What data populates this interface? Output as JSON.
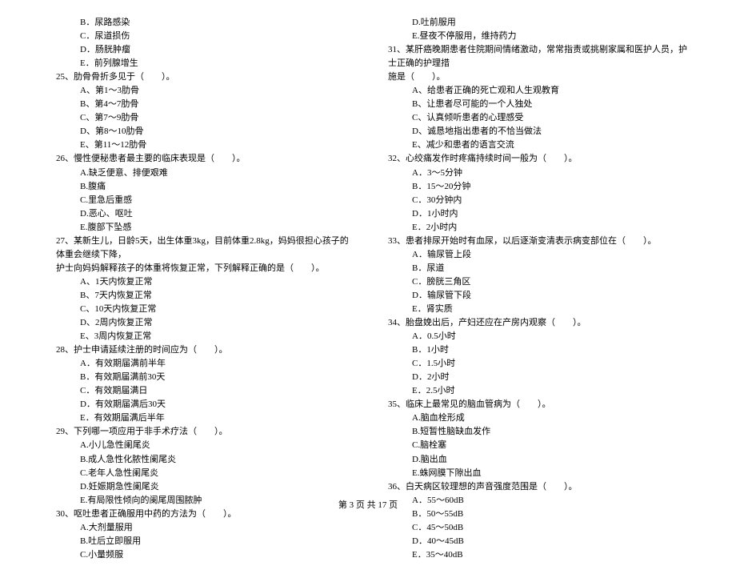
{
  "left_column": {
    "pre_options": [
      "B．尿路感染",
      "C．尿道损伤",
      "D．肠胱肿瘤",
      "E．前列腺增生"
    ],
    "q25": {
      "text": "25、肋骨骨折多见于（　　）。",
      "options": [
        "A、第1～3肋骨",
        "B、第4～7肋骨",
        "C、第7～9肋骨",
        "D、第8～10肋骨",
        "E、第11～12肋骨"
      ]
    },
    "q26": {
      "text": "26、慢性便秘患者最主要的临床表现是（　　）。",
      "options": [
        "A.缺乏便意、排便艰难",
        "B.腹痛",
        "C.里急后重感",
        "D.恶心、呕吐",
        "E.腹部下坠感"
      ]
    },
    "q27": {
      "text": "27、某新生儿，日龄5天，出生体重3kg，目前体重2.8kg，妈妈很担心孩子的体重会继续下降，",
      "text2": "护士向妈妈解释孩子的体重将恢复正常，下列解释正确的是（　　）。",
      "options": [
        "A、1天内恢复正常",
        "B、7天内恢复正常",
        "C、10天内恢复正常",
        "D、2周内恢复正常",
        "E、3周内恢复正常"
      ]
    },
    "q28": {
      "text": "28、护士申请延续注册的时间应为（　　）。",
      "options": [
        "A．有效期届满前半年",
        "B．有效期届满前30天",
        "C．有效期届满日",
        "D．有效期届满后30天",
        "E．有效期届满后半年"
      ]
    },
    "q29": {
      "text": "29、下列哪一项应用于非手术疗法（　　）。",
      "options": [
        "A.小儿急性阑尾炎",
        "B.成人急性化脓性阑尾炎",
        "C.老年人急性阑尾炎",
        "D.妊娠期急性阑尾炎",
        "E.有局限性倾向的阑尾周围脓肿"
      ]
    },
    "q30": {
      "text": "30、呕吐患者正确服用中药的方法为（　　）。",
      "options": [
        "A.大剂量服用",
        "B.吐后立即服用",
        "C.小量频服"
      ]
    }
  },
  "right_column": {
    "pre_options": [
      "D.吐前服用",
      "E.昼夜不停服用，维持药力"
    ],
    "q31": {
      "text": "31、某肝癌晚期患者住院期间情绪激动，常常指责或挑剔家属和医护人员，护士正确的护理措",
      "text2": "施是（　　）。",
      "options": [
        "A、给患者正确的死亡观和人生观教育",
        "B、让患者尽可能的一个人独处",
        "C、认真倾听患者的心理感受",
        "D、诚恳地指出患者的不恰当做法",
        "E、减少和患者的语言交流"
      ]
    },
    "q32": {
      "text": "32、心绞痛发作时疼痛持续时间一般为（　　）。",
      "options": [
        "A．3～5分钟",
        "B．15～20分钟",
        "C．30分钟内",
        "D．1小时内",
        "E．2小时内"
      ]
    },
    "q33": {
      "text": "33、患者排尿开始时有血尿，以后逐渐变清表示病变部位在（　　）。",
      "options": [
        "A．输尿管上段",
        "B．尿道",
        "C．膀胱三角区",
        "D．输尿管下段",
        "E．肾实质"
      ]
    },
    "q34": {
      "text": "34、胎盘娩出后，产妇还应在产房内观察（　　）。",
      "options": [
        "A．0.5小时",
        "B．1小时",
        "C．1.5小时",
        "D．2小时",
        "E．2.5小时"
      ]
    },
    "q35": {
      "text": "35、临床上最常见的脑血管病为（　　）。",
      "options": [
        "A.脑血栓形成",
        "B.短暂性脑缺血发作",
        "C.脑栓塞",
        "D.脑出血",
        "E.蛛网膜下隙出血"
      ]
    },
    "q36": {
      "text": "36、白天病区较理想的声音强度范围是（　　）。",
      "options": [
        "A．55～60dB",
        "B．50～55dB",
        "C．45～50dB",
        "D．40～45dB",
        "E．35～40dB"
      ]
    }
  },
  "footer": "第 3 页 共 17 页"
}
